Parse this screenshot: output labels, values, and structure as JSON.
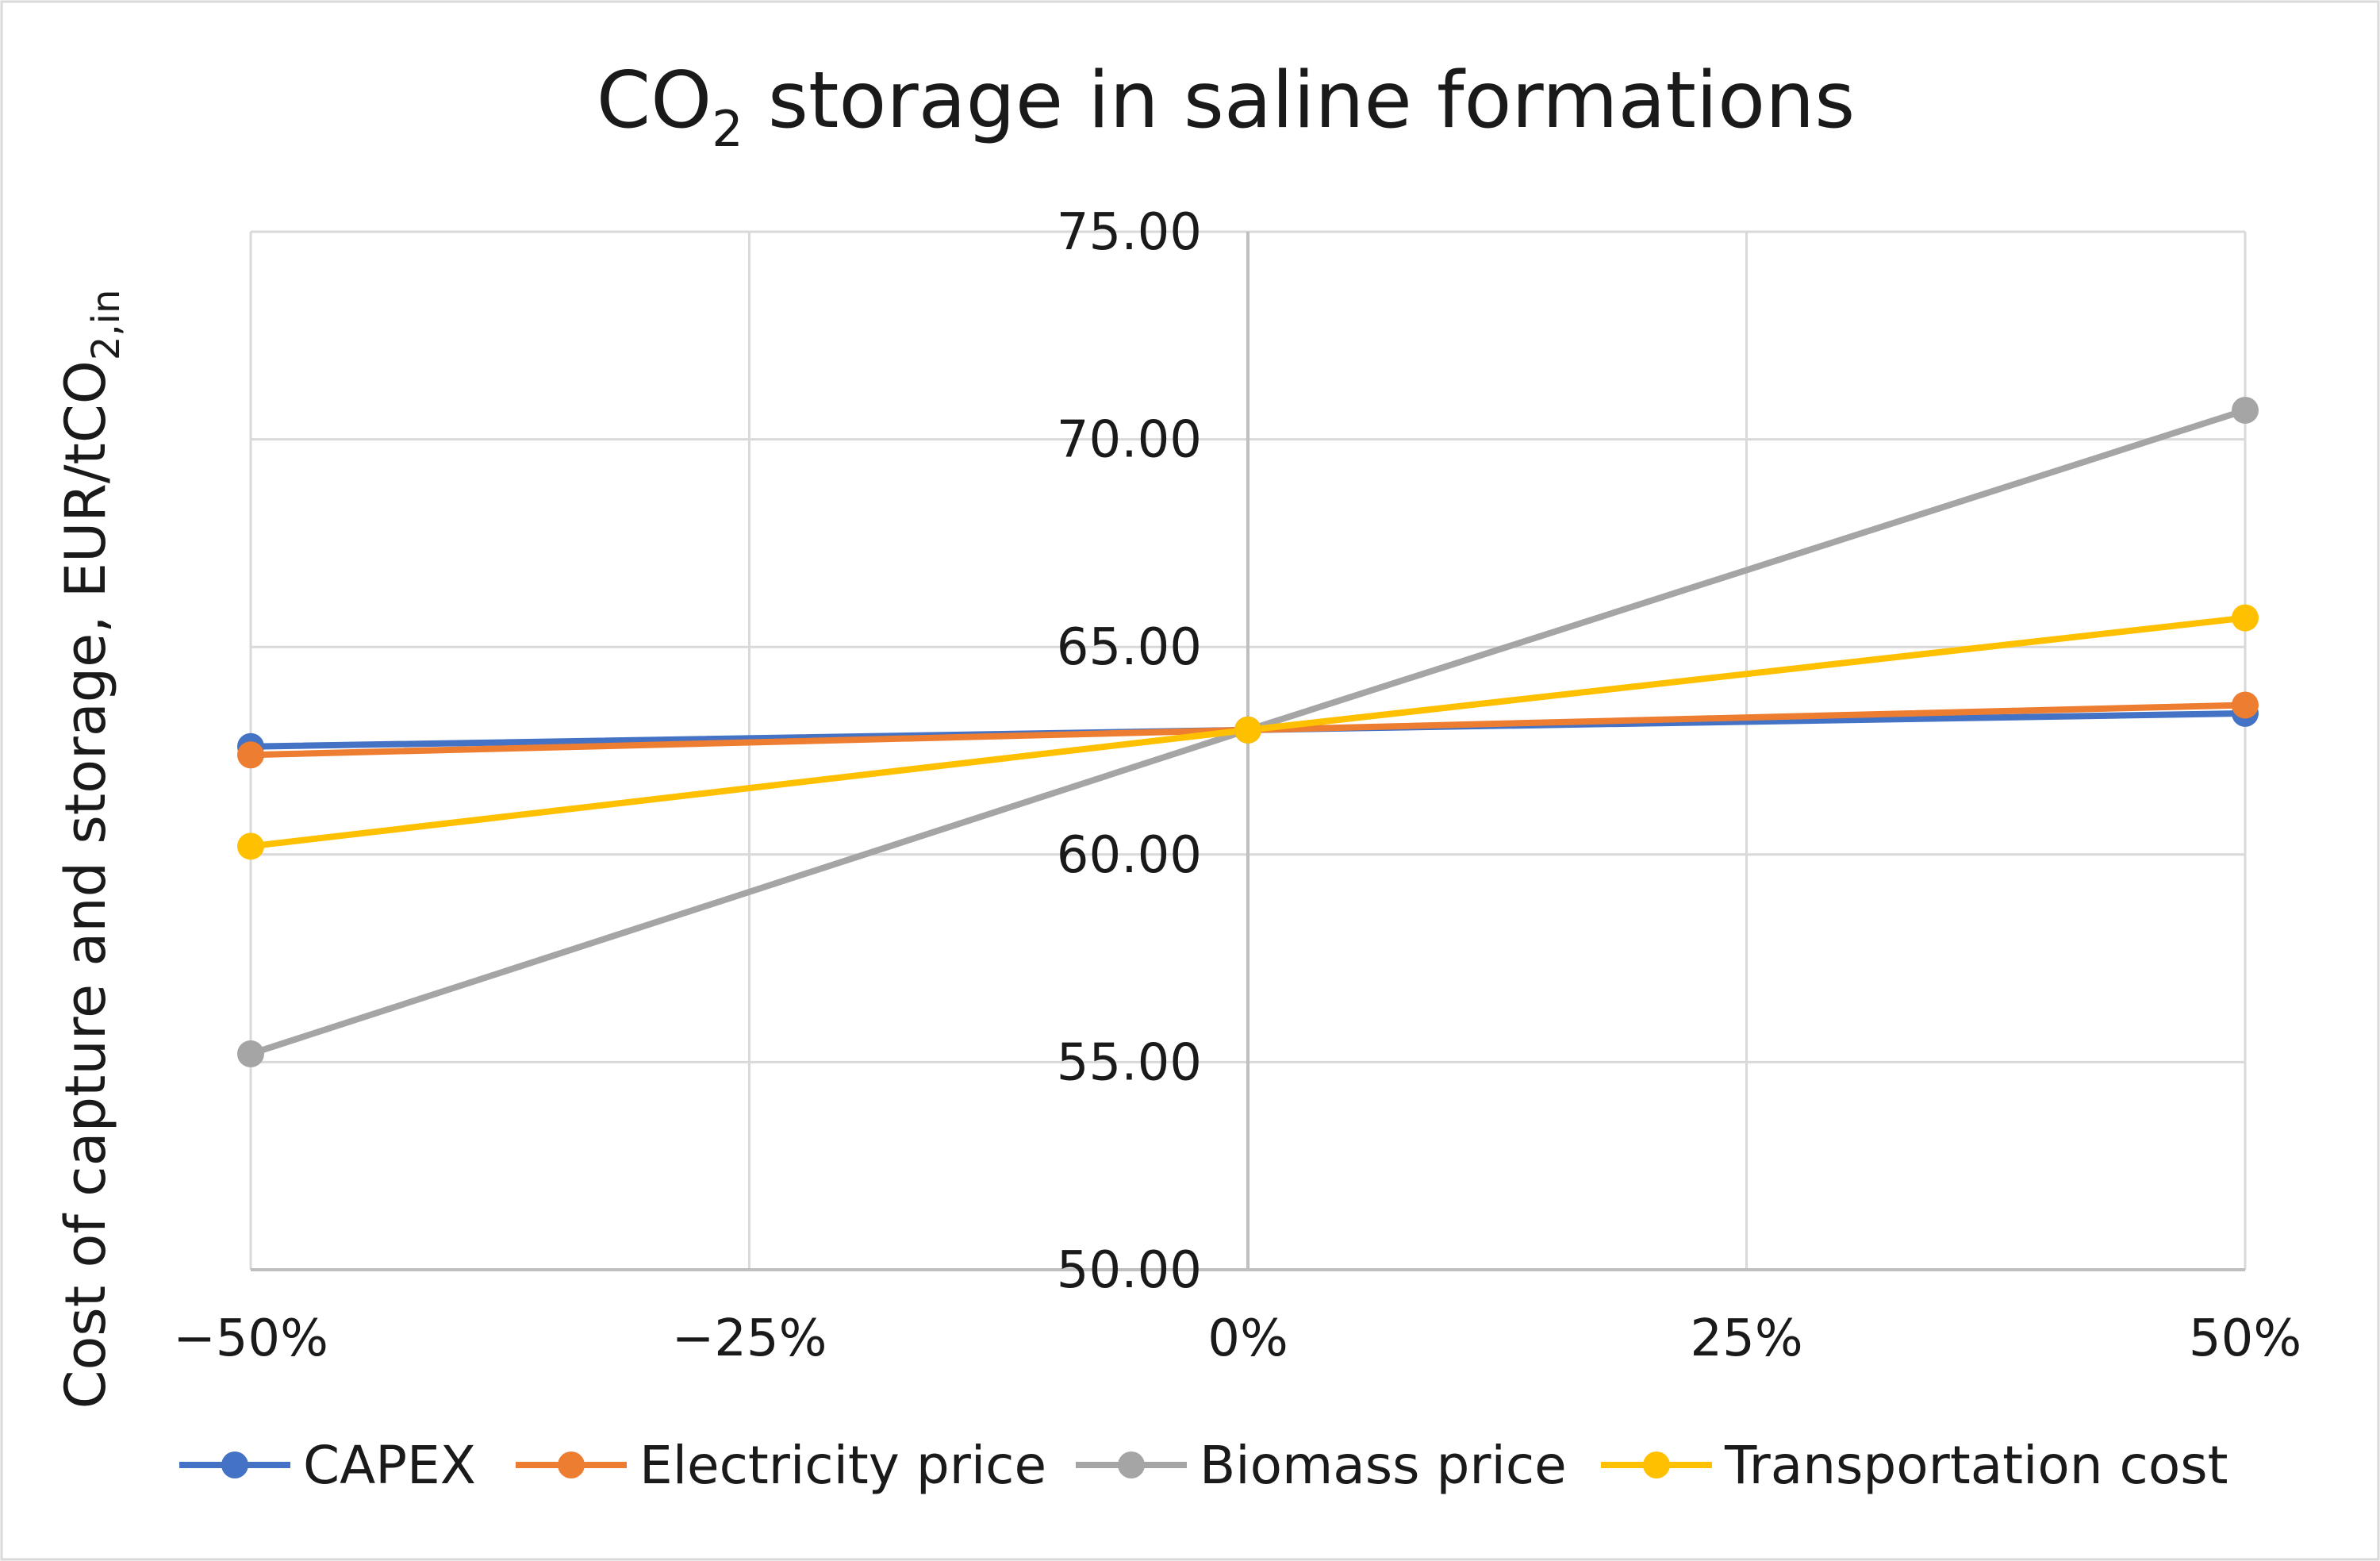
{
  "chart_data": {
    "type": "line",
    "title": {
      "main": "CO",
      "sub": "2",
      "rest": " storage in saline formations"
    },
    "ylabel": {
      "main": "Cost of capture and storage, EUR/tCO",
      "sub": "2,in"
    },
    "xlabel": "",
    "x": [
      -50,
      0,
      50
    ],
    "x_ticks": [
      {
        "value": -50,
        "label": "−50%"
      },
      {
        "value": -25,
        "label": "−25%"
      },
      {
        "value": 0,
        "label": "0%"
      },
      {
        "value": 25,
        "label": "25%"
      },
      {
        "value": 50,
        "label": "50%"
      }
    ],
    "xlim": [
      -50,
      50
    ],
    "ylim": [
      50,
      75
    ],
    "y_ticks": [
      {
        "value": 50,
        "label": "50.00"
      },
      {
        "value": 55,
        "label": "55.00"
      },
      {
        "value": 60,
        "label": "60.00"
      },
      {
        "value": 65,
        "label": "65.00"
      },
      {
        "value": 70,
        "label": "70.00"
      },
      {
        "value": 75,
        "label": "75.00"
      }
    ],
    "grid": true,
    "legend_position": "bottom",
    "series": [
      {
        "name": "CAPEX",
        "color": "#4472C4",
        "values": [
          62.6,
          63.0,
          63.4
        ]
      },
      {
        "name": "Electricity price",
        "color": "#ED7D31",
        "values": [
          62.4,
          63.0,
          63.6
        ]
      },
      {
        "name": "Biomass price",
        "color": "#A5A5A5",
        "values": [
          55.2,
          63.0,
          70.7
        ]
      },
      {
        "name": "Transportation cost",
        "color": "#FFC000",
        "values": [
          60.2,
          63.0,
          65.7
        ]
      }
    ]
  }
}
